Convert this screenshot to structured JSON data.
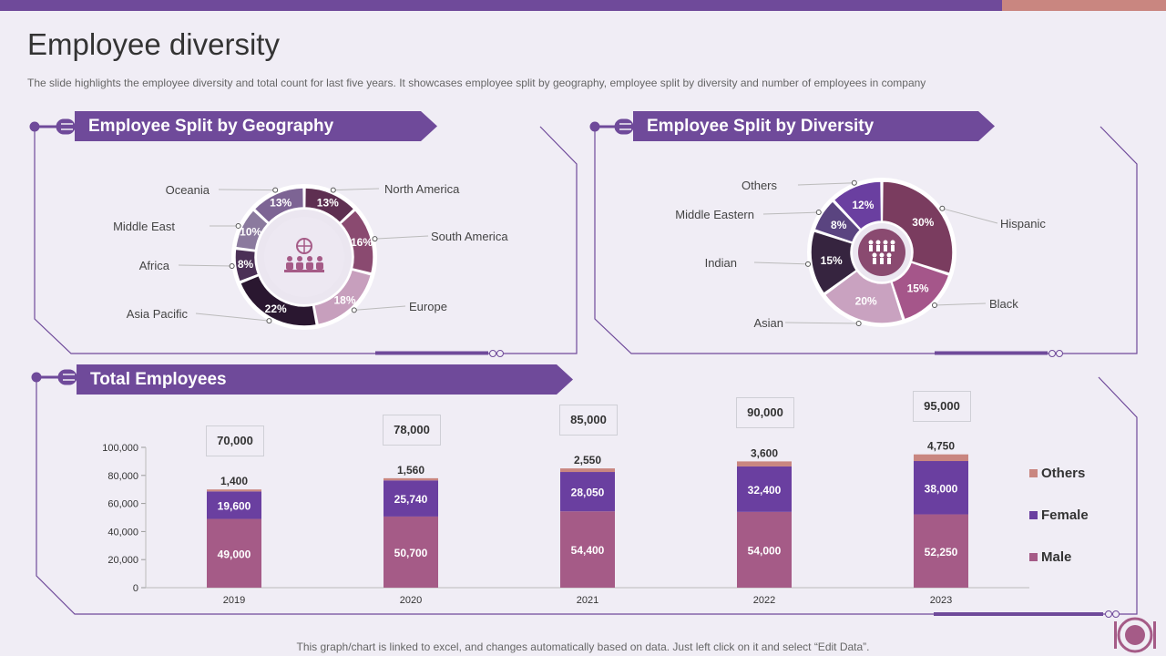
{
  "page": {
    "title": "Employee diversity",
    "subtitle": "The slide highlights the employee diversity and total count for last five years. It showcases employee split by geography, employee split by diversity and number of employees in company",
    "footer": "This graph/chart is linked to excel,  and changes automatically based on data. Just left click on it and select “Edit Data”."
  },
  "colors": {
    "primary": "#6f4a9a",
    "accent": "#c98680",
    "male": "#a55b87",
    "female": "#6a3fa0",
    "others": "#c98680"
  },
  "icons": [
    "people-globe-icon",
    "people-group-icon",
    "plate-cutlery-icon"
  ],
  "chart_data": [
    {
      "type": "pie",
      "title": "Employee Split by Geography",
      "categories": [
        "North America",
        "South America",
        "Europe",
        "Asia Pacific",
        "Africa",
        "Middle East",
        "Oceania"
      ],
      "values": [
        13,
        16,
        18,
        22,
        8,
        10,
        13
      ],
      "labels": [
        "13%",
        "16%",
        "18%",
        "22%",
        "8%",
        "10%",
        "13%"
      ],
      "colors": [
        "#5e2f51",
        "#8a4a70",
        "#c79fbd",
        "#2a1730",
        "#4b3056",
        "#8b7a9e",
        "#7d6494"
      ],
      "label_colors": [
        "#ffffff",
        "#ffffff",
        "#ffffff",
        "#ffffff",
        "#ffffff",
        "#ffffff",
        "#ffffff"
      ]
    },
    {
      "type": "pie",
      "title": "Employee Split by Diversity",
      "categories": [
        "Hispanic",
        "Black",
        "Asian",
        "Indian",
        "Middle Eastern",
        "Others"
      ],
      "values": [
        30,
        15,
        20,
        15,
        8,
        12
      ],
      "labels": [
        "30%",
        "15%",
        "20%",
        "15%",
        "8%",
        "12%"
      ],
      "colors": [
        "#7a3c5f",
        "#a5568a",
        "#c9a2c0",
        "#36243f",
        "#5a4480",
        "#6a3fa0"
      ],
      "label_colors": [
        "#ffffff",
        "#ffffff",
        "#ffffff",
        "#ffffff",
        "#ffffff",
        "#ffffff"
      ]
    },
    {
      "type": "bar",
      "stacked": true,
      "title": "Total Employees",
      "categories": [
        "2019",
        "2020",
        "2021",
        "2022",
        "2023"
      ],
      "series": [
        {
          "name": "Male",
          "values": [
            49000,
            50700,
            54400,
            54000,
            52250
          ],
          "labels": [
            "49,000",
            "50,700",
            "54,400",
            "54,000",
            "52,250"
          ]
        },
        {
          "name": "Female",
          "values": [
            19600,
            25740,
            28050,
            32400,
            38000
          ],
          "labels": [
            "19,600",
            "25,740",
            "28,050",
            "32,400",
            "38,000"
          ]
        },
        {
          "name": "Others",
          "values": [
            1400,
            1560,
            2550,
            3600,
            4750
          ],
          "labels": [
            "1,400",
            "1,560",
            "2,550",
            "3,600",
            "4,750"
          ]
        }
      ],
      "totals": [
        "70,000",
        "78,000",
        "85,000",
        "90,000",
        "95,000"
      ],
      "ylim": [
        0,
        100000
      ],
      "yticks": [
        0,
        20000,
        40000,
        60000,
        80000,
        100000
      ],
      "ytick_labels": [
        "0",
        "20,000",
        "40,000",
        "60,000",
        "80,000",
        "100,000"
      ],
      "legend": [
        "Others",
        "Female",
        "Male"
      ]
    }
  ]
}
